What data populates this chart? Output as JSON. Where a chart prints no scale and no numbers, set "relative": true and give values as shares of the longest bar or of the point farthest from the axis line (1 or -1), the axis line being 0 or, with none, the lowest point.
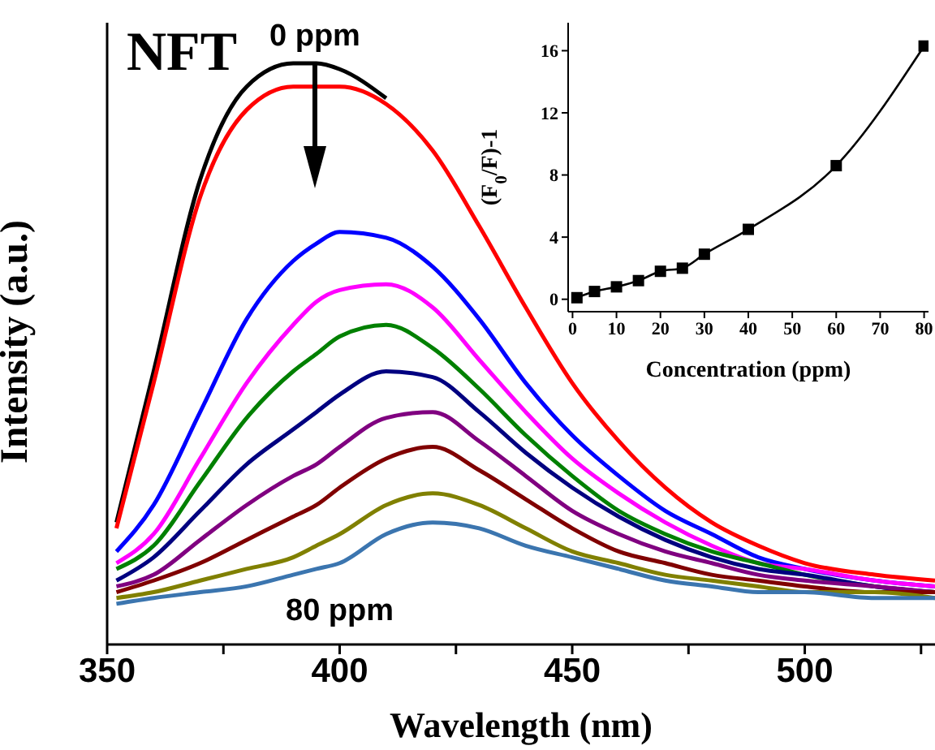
{
  "chart_data": [
    {
      "type": "line",
      "relative": true,
      "xlabel": "Wavelength (nm)",
      "ylabel": "Intensity (a.u.)",
      "annotations": [
        "NFT",
        "0 ppm",
        "80 ppm"
      ],
      "xlim": [
        350,
        528
      ],
      "xticks": [
        350,
        {
          "value": 375,
          "label": null
        },
        400,
        {
          "value": 425,
          "label": null
        },
        450,
        {
          "value": 475,
          "label": null
        },
        500,
        {
          "value": 525,
          "label": null
        }
      ],
      "marker": "none",
      "legend": false,
      "grid": false,
      "x": [
        352,
        360,
        370,
        380,
        390,
        395,
        400,
        410,
        420,
        430,
        440,
        450,
        460,
        470,
        480,
        490,
        500,
        515,
        528
      ],
      "series": [
        {
          "color": "#000000",
          "values": [
            0.21,
            0.47,
            0.8,
            0.96,
            1.0,
            1.0,
            0.99,
            0.94,
            null,
            null,
            null,
            null,
            null,
            null,
            null,
            null,
            null,
            null,
            null
          ]
        },
        {
          "color": "#ff0000",
          "values": [
            0.2,
            0.45,
            0.77,
            0.92,
            0.96,
            0.96,
            0.96,
            0.93,
            0.85,
            0.72,
            0.58,
            0.45,
            0.35,
            0.27,
            0.21,
            0.17,
            0.14,
            0.12,
            0.11
          ]
        },
        {
          "color": "#0000ff",
          "values": [
            0.16,
            0.24,
            0.4,
            0.56,
            0.66,
            0.69,
            0.71,
            0.7,
            0.65,
            0.56,
            0.45,
            0.36,
            0.29,
            0.23,
            0.19,
            0.15,
            0.13,
            0.11,
            0.1
          ]
        },
        {
          "color": "#ff00ff",
          "values": [
            0.14,
            0.19,
            0.32,
            0.45,
            0.55,
            0.59,
            0.61,
            0.62,
            0.58,
            0.49,
            0.4,
            0.32,
            0.26,
            0.21,
            0.17,
            0.14,
            0.13,
            0.11,
            0.1
          ]
        },
        {
          "color": "#008000",
          "values": [
            0.13,
            0.17,
            0.28,
            0.39,
            0.47,
            0.5,
            0.53,
            0.55,
            0.51,
            0.44,
            0.36,
            0.29,
            0.23,
            0.19,
            0.16,
            0.14,
            0.12,
            0.1,
            0.09
          ]
        },
        {
          "color": "#000080",
          "values": [
            0.11,
            0.15,
            0.23,
            0.31,
            0.37,
            0.4,
            0.43,
            0.47,
            0.46,
            0.4,
            0.33,
            0.27,
            0.22,
            0.18,
            0.15,
            0.13,
            0.12,
            0.1,
            0.09
          ]
        },
        {
          "color": "#800080",
          "values": [
            0.1,
            0.12,
            0.18,
            0.24,
            0.29,
            0.31,
            0.34,
            0.39,
            0.4,
            0.35,
            0.29,
            0.23,
            0.19,
            0.16,
            0.14,
            0.12,
            0.11,
            0.1,
            0.09
          ]
        },
        {
          "color": "#800000",
          "values": [
            0.09,
            0.11,
            0.14,
            0.18,
            0.22,
            0.24,
            0.27,
            0.32,
            0.34,
            0.3,
            0.25,
            0.2,
            0.16,
            0.14,
            0.12,
            0.11,
            0.1,
            0.09,
            0.09
          ]
        },
        {
          "color": "#808000",
          "values": [
            0.08,
            0.09,
            0.11,
            0.13,
            0.15,
            0.17,
            0.19,
            0.24,
            0.26,
            0.24,
            0.2,
            0.16,
            0.14,
            0.12,
            0.11,
            0.1,
            0.09,
            0.09,
            0.08
          ]
        },
        {
          "color": "#3b75af",
          "values": [
            0.07,
            0.08,
            0.09,
            0.1,
            0.12,
            0.13,
            0.14,
            0.19,
            0.21,
            0.2,
            0.17,
            0.15,
            0.13,
            0.11,
            0.1,
            0.09,
            0.09,
            0.08,
            0.08
          ]
        }
      ]
    },
    {
      "type": "line",
      "xlabel": "Concentration (ppm)",
      "ylabel": "(F$_{0}$/F)-1",
      "xlim": [
        -1,
        81
      ],
      "xticks": [
        0,
        10,
        20,
        30,
        40,
        50,
        60,
        70,
        80
      ],
      "ylim": [
        -0.8,
        17.8
      ],
      "yticks": [
        0,
        4,
        8,
        12,
        16
      ],
      "marker": "square",
      "legend": false,
      "grid": false,
      "x": [
        1,
        5,
        10,
        15,
        20,
        25,
        30,
        40,
        60,
        80
      ],
      "series": [
        {
          "color": "#000000",
          "values": [
            0.1,
            0.5,
            0.8,
            1.2,
            1.8,
            2.0,
            2.9,
            4.5,
            8.6,
            16.3
          ]
        }
      ]
    }
  ]
}
